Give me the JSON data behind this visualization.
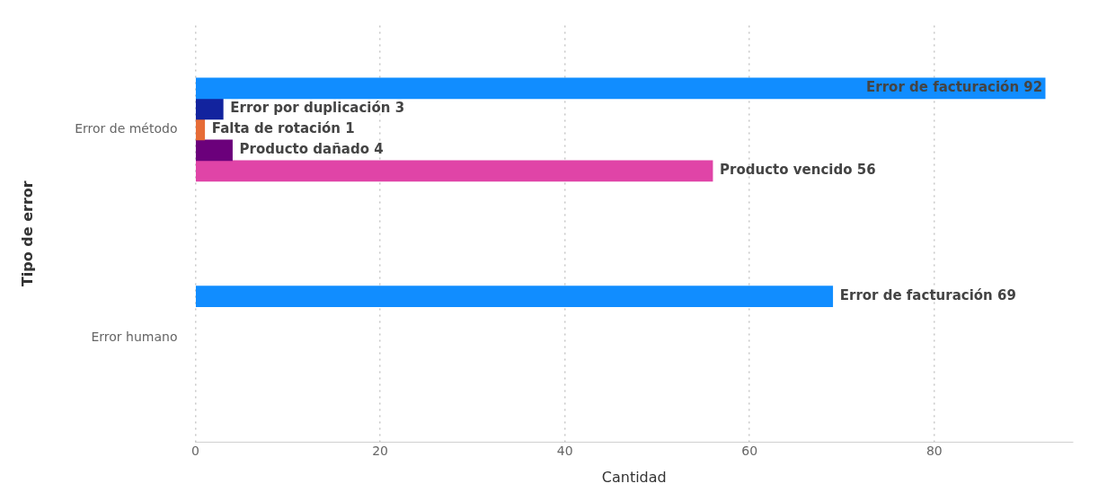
{
  "chart_data": {
    "type": "bar",
    "orientation": "horizontal",
    "xlabel": "Cantidad",
    "ylabel": "Tipo de error",
    "categories": [
      "Error de método",
      "Error humano"
    ],
    "series": [
      {
        "color": "#118dff",
        "values": [
          92,
          69
        ],
        "value_labels": [
          "Error de facturación 92",
          "Error de facturación 69"
        ]
      },
      {
        "color": "#12239e",
        "values": [
          3,
          null
        ],
        "value_labels": [
          "Error por duplicación 3",
          null
        ]
      },
      {
        "color": "#e66c37",
        "values": [
          1,
          null
        ],
        "value_labels": [
          "Falta de rotación 1",
          null
        ]
      },
      {
        "color": "#6b007b",
        "values": [
          4,
          null
        ],
        "value_labels": [
          "Producto dañado 4",
          null
        ]
      },
      {
        "color": "#e044a7",
        "values": [
          56,
          null
        ],
        "value_labels": [
          "Producto vencido 56",
          null
        ]
      }
    ],
    "xlim": [
      0,
      95
    ],
    "xticks": [
      0,
      20,
      40,
      60,
      80
    ],
    "grid": "x",
    "legend": false
  }
}
